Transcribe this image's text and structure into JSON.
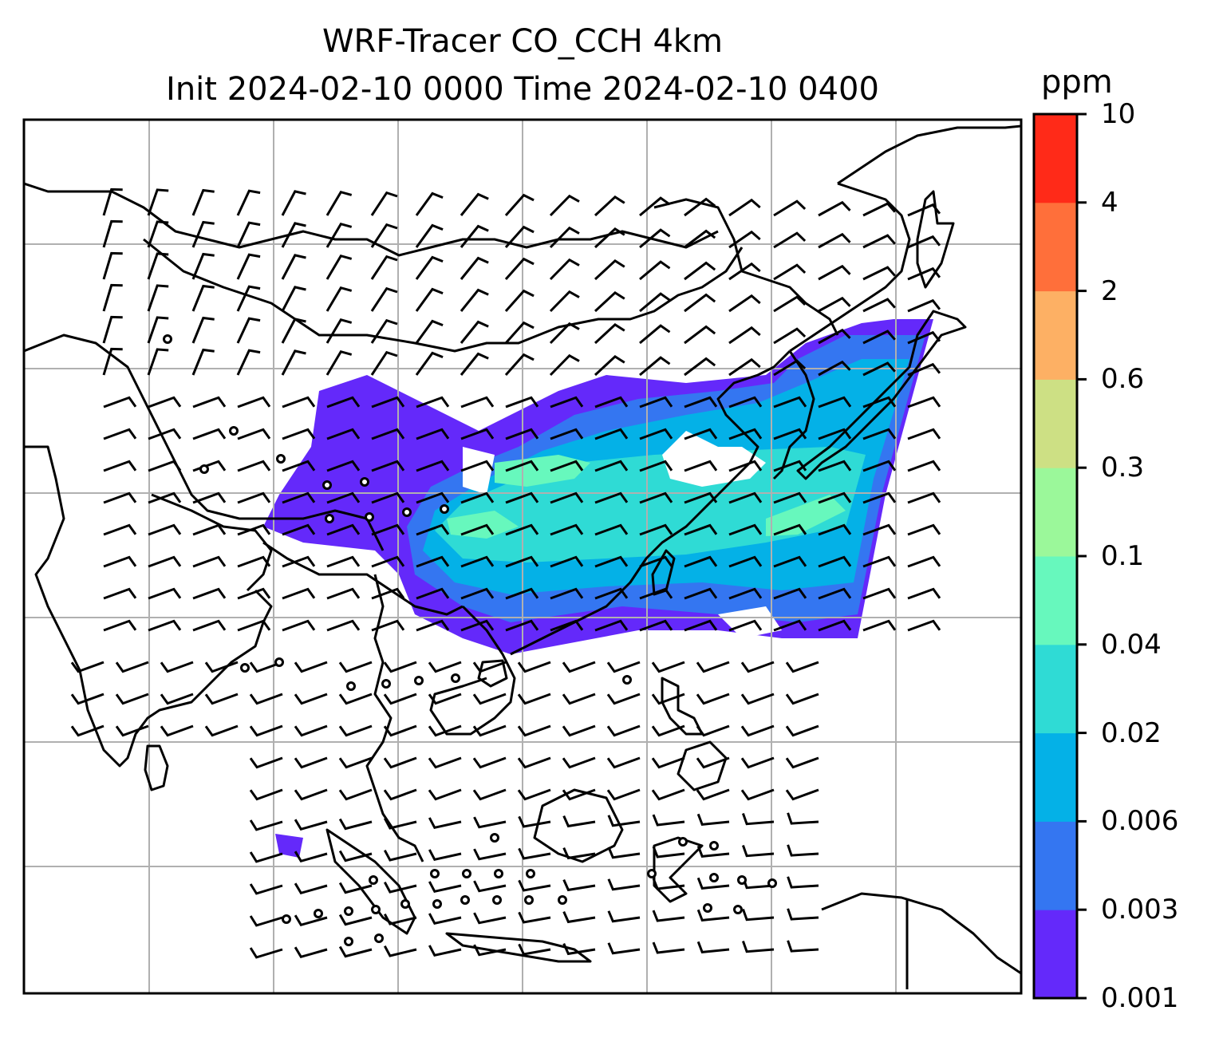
{
  "figure": {
    "title_line1": "WRF-Tracer CO_CCH 4km",
    "title_line2": "Init 2024-02-10 0000 Time 2024-02-10 0400"
  },
  "colorbar": {
    "unit": "ppm",
    "levels": [
      "0.001",
      "0.003",
      "0.006",
      "0.02",
      "0.04",
      "0.1",
      "0.3",
      "0.6",
      "2",
      "4",
      "10"
    ],
    "colors": [
      "#6429fa",
      "#3476f1",
      "#04b1e7",
      "#2fdbd5",
      "#67f8bd",
      "#9bf89a",
      "#cde084",
      "#fdb064",
      "#ff6f3a",
      "#ff2a18"
    ]
  },
  "map": {
    "background": "#ffffff",
    "gridlines": true,
    "coastlines": true,
    "plume_colors_in_use": [
      "#6429fa",
      "#3476f1",
      "#04b1e7",
      "#2fdbd5",
      "#67f8bd"
    ],
    "wind_barb_color": "#000000"
  }
}
